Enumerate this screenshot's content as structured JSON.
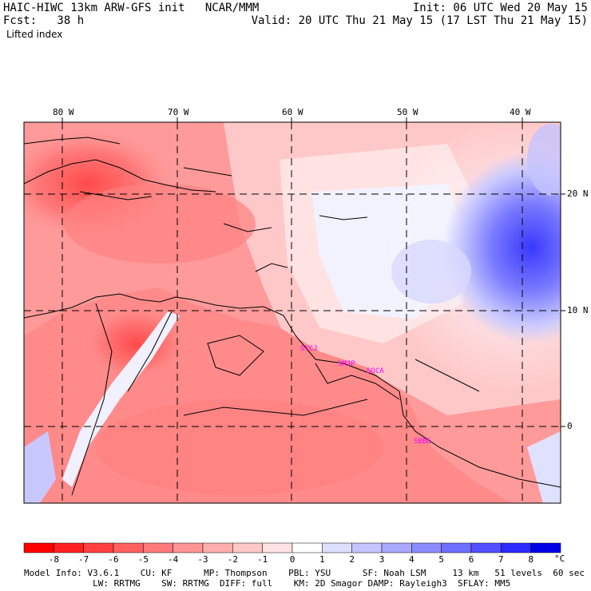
{
  "header": {
    "title": "HAIC-HIWC 13km ARW-GFS init   NCAR/MMM",
    "fcst": "Fcst:   38 h",
    "init": "Init: 06 UTC Wed 20 May 15",
    "valid": "Valid: 20 UTC Thu 21 May 15 (17 LST Thu 21 May 15)",
    "field": "Lifted index"
  },
  "map": {
    "lon_labels": [
      "80 W",
      "70 W",
      "60 W",
      "50 W",
      "40 W"
    ],
    "lat_labels": [
      "20 N",
      "10 N",
      "0"
    ],
    "stations": [
      "SYCJ",
      "SMJP",
      "SOCA",
      "SBBE"
    ],
    "colors": {
      "deep_neg": "#ff0000",
      "neg": "#ff8080",
      "neutral": "#ffffff",
      "pos": "#8080ff",
      "deep_pos": "#0000ff",
      "station": "#ff00ff"
    }
  },
  "colorbar": {
    "labels": [
      "-8",
      "-7",
      "-6",
      "-5",
      "-4",
      "-3",
      "-2",
      "-1",
      "0",
      "1",
      "2",
      "3",
      "4",
      "5",
      "6",
      "7",
      "8"
    ],
    "unit": "°C",
    "colors": [
      "#ff0000",
      "#ff2020",
      "#ff4040",
      "#ff6060",
      "#ff7a7a",
      "#ff9494",
      "#ffadad",
      "#ffc8c8",
      "#ffe3e3",
      "#ffffff",
      "#dedeff",
      "#c4c4ff",
      "#a8a8ff",
      "#8c8cff",
      "#6e6eff",
      "#5050ff",
      "#2c2cff",
      "#0000e8"
    ]
  },
  "footer": {
    "line1": "Model Info: V3.6.1    CU: KF      MP: Thompson    PBL: YSU      SF: Noah LSM     13 km   51 levels  60 sec",
    "line2": "             LW: RRTMG    SW: RRTMG  DIFF: full    KM: 2D Smagor DAMP: Rayleigh3  SFLAY: MM5"
  }
}
